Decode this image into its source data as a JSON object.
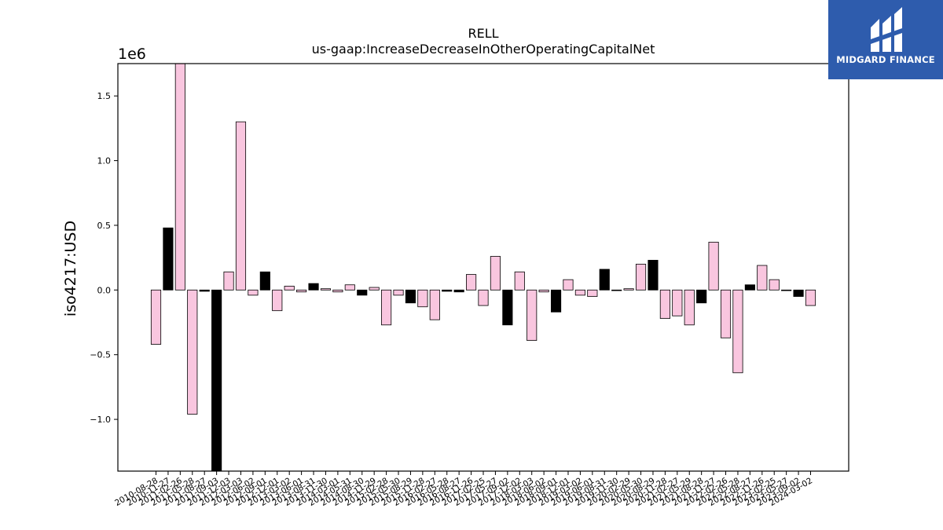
{
  "chart_data": {
    "type": "bar",
    "title": "RELL",
    "subtitle": "us-gaap:IncreaseDecreaseInOtherOperatingCapitalNet",
    "xlabel": "",
    "ylabel": "iso4217:USD",
    "scale_label": "1e6",
    "ylim": [
      -1.4,
      1.75
    ],
    "yticks": [
      -1.0,
      -0.5,
      0.0,
      0.5,
      1.0,
      1.5
    ],
    "ytick_labels": [
      "−1.0",
      "−0.5",
      "0.0",
      "0.5",
      "1.0",
      "1.5"
    ],
    "grid": false,
    "colors": {
      "pink": "#f9c6df",
      "black": "#000000",
      "edge": "#000000"
    },
    "bars": [
      {
        "date": "2010-08-28",
        "value": -0.42,
        "color": "pink"
      },
      {
        "date": "2010-11-27",
        "value": 0.48,
        "color": "black"
      },
      {
        "date": "2011-02-26",
        "value": 1.75,
        "color": "pink"
      },
      {
        "date": "2011-05-28",
        "value": -0.96,
        "color": "pink"
      },
      {
        "date": "2011-08-27",
        "value": -0.01,
        "color": "black"
      },
      {
        "date": "2011-09-03",
        "value": -1.4,
        "color": "black"
      },
      {
        "date": "2011-12-03",
        "value": 0.14,
        "color": "pink"
      },
      {
        "date": "2012-03-03",
        "value": 1.3,
        "color": "pink"
      },
      {
        "date": "2012-06-02",
        "value": -0.04,
        "color": "pink"
      },
      {
        "date": "2012-09-01",
        "value": 0.14,
        "color": "black"
      },
      {
        "date": "2012-12-01",
        "value": -0.16,
        "color": "pink"
      },
      {
        "date": "2013-03-02",
        "value": 0.03,
        "color": "pink"
      },
      {
        "date": "2013-06-01",
        "value": -0.015,
        "color": "pink"
      },
      {
        "date": "2013-08-31",
        "value": 0.05,
        "color": "black"
      },
      {
        "date": "2013-11-30",
        "value": 0.01,
        "color": "pink"
      },
      {
        "date": "2014-03-01",
        "value": -0.015,
        "color": "pink"
      },
      {
        "date": "2014-05-31",
        "value": 0.04,
        "color": "pink"
      },
      {
        "date": "2014-08-30",
        "value": -0.04,
        "color": "black"
      },
      {
        "date": "2014-11-29",
        "value": 0.02,
        "color": "pink"
      },
      {
        "date": "2015-02-28",
        "value": -0.27,
        "color": "pink"
      },
      {
        "date": "2015-05-30",
        "value": -0.04,
        "color": "pink"
      },
      {
        "date": "2015-08-29",
        "value": -0.1,
        "color": "black"
      },
      {
        "date": "2015-11-28",
        "value": -0.13,
        "color": "pink"
      },
      {
        "date": "2016-02-27",
        "value": -0.23,
        "color": "pink"
      },
      {
        "date": "2016-05-28",
        "value": -0.01,
        "color": "black"
      },
      {
        "date": "2016-08-27",
        "value": -0.015,
        "color": "black"
      },
      {
        "date": "2016-11-26",
        "value": 0.12,
        "color": "pink"
      },
      {
        "date": "2017-02-25",
        "value": -0.12,
        "color": "pink"
      },
      {
        "date": "2017-05-27",
        "value": 0.26,
        "color": "pink"
      },
      {
        "date": "2017-09-02",
        "value": -0.27,
        "color": "black"
      },
      {
        "date": "2017-12-02",
        "value": 0.14,
        "color": "pink"
      },
      {
        "date": "2018-03-03",
        "value": -0.39,
        "color": "pink"
      },
      {
        "date": "2018-06-02",
        "value": -0.015,
        "color": "pink"
      },
      {
        "date": "2018-09-01",
        "value": -0.17,
        "color": "black"
      },
      {
        "date": "2018-12-01",
        "value": 0.08,
        "color": "pink"
      },
      {
        "date": "2019-03-02",
        "value": -0.04,
        "color": "pink"
      },
      {
        "date": "2019-06-01",
        "value": -0.05,
        "color": "pink"
      },
      {
        "date": "2019-08-31",
        "value": 0.16,
        "color": "black"
      },
      {
        "date": "2019-11-30",
        "value": -0.005,
        "color": "black"
      },
      {
        "date": "2020-02-29",
        "value": 0.01,
        "color": "pink"
      },
      {
        "date": "2020-05-30",
        "value": 0.2,
        "color": "pink"
      },
      {
        "date": "2020-08-29",
        "value": 0.23,
        "color": "black"
      },
      {
        "date": "2020-11-28",
        "value": -0.22,
        "color": "pink"
      },
      {
        "date": "2021-02-27",
        "value": -0.2,
        "color": "pink"
      },
      {
        "date": "2021-05-29",
        "value": -0.27,
        "color": "pink"
      },
      {
        "date": "2021-08-28",
        "value": -0.1,
        "color": "black"
      },
      {
        "date": "2021-11-27",
        "value": 0.37,
        "color": "pink"
      },
      {
        "date": "2022-02-26",
        "value": -0.37,
        "color": "pink"
      },
      {
        "date": "2022-05-28",
        "value": -0.64,
        "color": "pink"
      },
      {
        "date": "2022-08-27",
        "value": 0.04,
        "color": "black"
      },
      {
        "date": "2022-11-26",
        "value": 0.19,
        "color": "pink"
      },
      {
        "date": "2023-02-25",
        "value": 0.08,
        "color": "pink"
      },
      {
        "date": "2023-05-27",
        "value": -0.005,
        "color": "black"
      },
      {
        "date": "2023-09-02",
        "value": -0.05,
        "color": "black"
      },
      {
        "date": "2024-03-02",
        "value": -0.12,
        "color": "pink"
      }
    ]
  },
  "logo": {
    "text": "MIDGARD FINANCE",
    "background": "#2e5cad"
  }
}
